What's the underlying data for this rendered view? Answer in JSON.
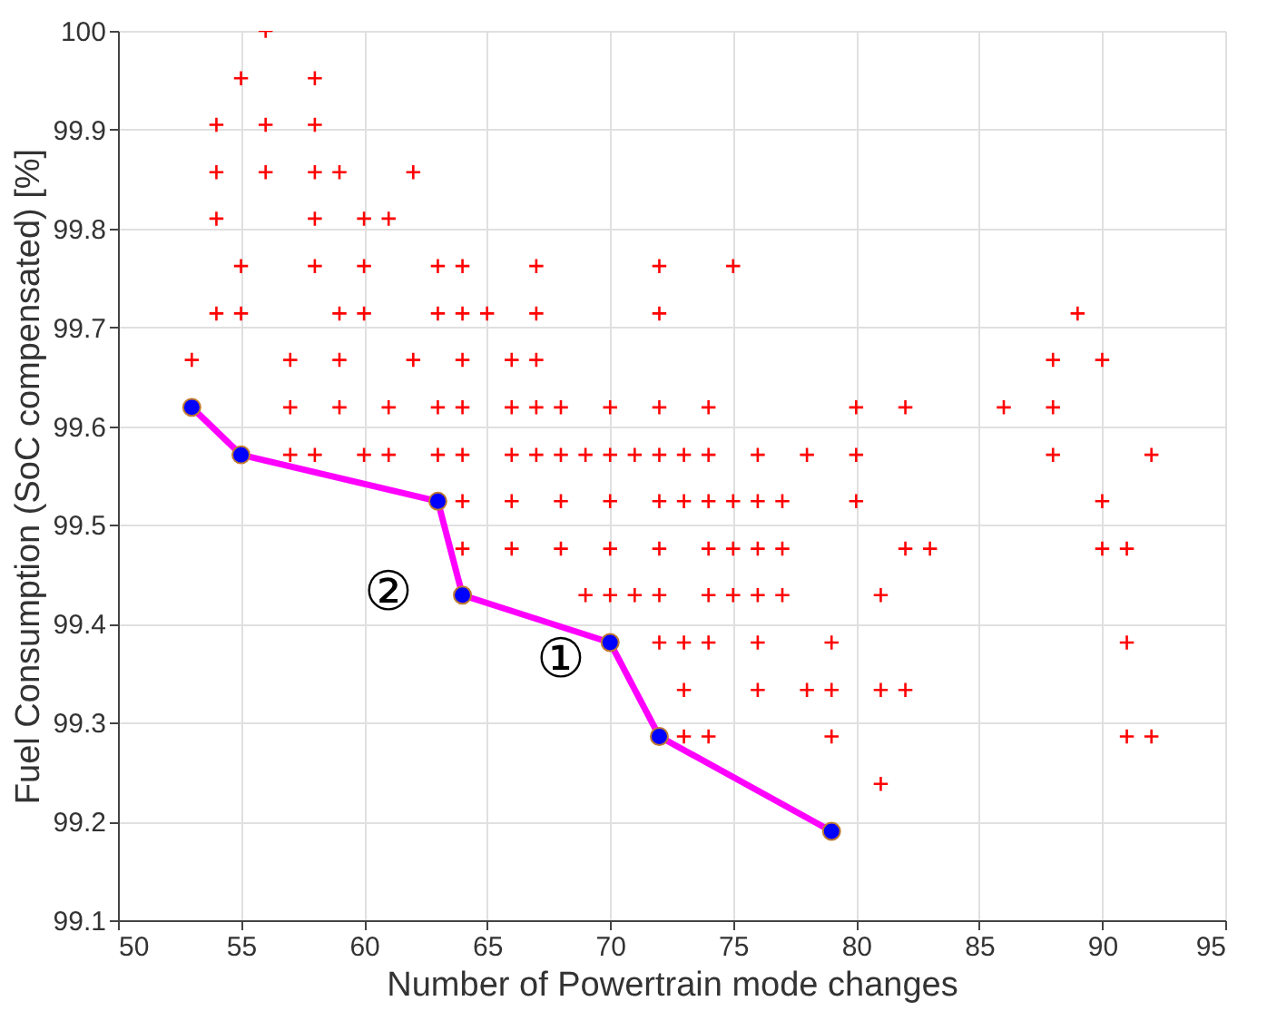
{
  "chart_data": {
    "type": "scatter",
    "xlabel": "Number of Powertrain mode changes",
    "ylabel": "Fuel Consumption (SoC compensated) [%]",
    "xlim": [
      50,
      95
    ],
    "xticks": [
      50,
      55,
      60,
      65,
      70,
      75,
      80,
      85,
      90,
      95
    ],
    "ylim": [
      99.1,
      100
    ],
    "yticks": [
      99.1,
      99.2,
      99.3,
      99.4,
      99.5,
      99.6,
      99.7,
      99.8,
      99.9,
      100
    ],
    "grid": true,
    "annotations": [
      "②",
      "①"
    ],
    "series": [
      {
        "marker": "cross",
        "color": "#ff0000",
        "x": [
          56,
          55,
          58,
          54,
          56,
          58,
          54,
          56,
          58,
          59,
          62,
          54,
          58,
          60,
          61,
          55,
          58,
          60,
          63,
          64,
          67,
          72,
          75,
          54,
          55,
          59,
          60,
          63,
          64,
          65,
          67,
          72,
          89,
          53,
          57,
          59,
          62,
          64,
          66,
          67,
          88,
          90,
          57,
          59,
          61,
          63,
          64,
          66,
          67,
          68,
          70,
          72,
          74,
          80,
          82,
          86,
          88,
          57,
          58,
          60,
          61,
          63,
          64,
          66,
          67,
          68,
          69,
          70,
          71,
          72,
          73,
          74,
          76,
          78,
          80,
          88,
          92,
          64,
          66,
          68,
          70,
          72,
          73,
          74,
          75,
          76,
          77,
          80,
          90,
          64,
          66,
          68,
          70,
          72,
          74,
          75,
          76,
          77,
          82,
          83,
          90,
          91,
          69,
          70,
          71,
          72,
          74,
          75,
          76,
          77,
          81,
          72,
          73,
          74,
          76,
          79,
          91,
          73,
          76,
          78,
          79,
          81,
          82,
          73,
          74,
          79,
          91,
          92,
          81
        ],
        "values": [
          100,
          99.952,
          99.952,
          99.905,
          99.905,
          99.905,
          99.857,
          99.857,
          99.857,
          99.857,
          99.857,
          99.81,
          99.81,
          99.81,
          99.81,
          99.762,
          99.762,
          99.762,
          99.762,
          99.762,
          99.762,
          99.762,
          99.762,
          99.714,
          99.714,
          99.714,
          99.714,
          99.714,
          99.714,
          99.714,
          99.714,
          99.714,
          99.714,
          99.667,
          99.667,
          99.667,
          99.667,
          99.667,
          99.667,
          99.667,
          99.667,
          99.667,
          99.619,
          99.619,
          99.619,
          99.619,
          99.619,
          99.619,
          99.619,
          99.619,
          99.619,
          99.619,
          99.619,
          99.619,
          99.619,
          99.619,
          99.619,
          99.571,
          99.571,
          99.571,
          99.571,
          99.571,
          99.571,
          99.571,
          99.571,
          99.571,
          99.571,
          99.571,
          99.571,
          99.571,
          99.571,
          99.571,
          99.571,
          99.571,
          99.571,
          99.571,
          99.571,
          99.524,
          99.524,
          99.524,
          99.524,
          99.524,
          99.524,
          99.524,
          99.524,
          99.524,
          99.524,
          99.524,
          99.524,
          99.476,
          99.476,
          99.476,
          99.476,
          99.476,
          99.476,
          99.476,
          99.476,
          99.476,
          99.476,
          99.476,
          99.476,
          99.476,
          99.429,
          99.429,
          99.429,
          99.429,
          99.429,
          99.429,
          99.429,
          99.429,
          99.429,
          99.381,
          99.381,
          99.381,
          99.381,
          99.381,
          99.381,
          99.333,
          99.333,
          99.333,
          99.333,
          99.333,
          99.333,
          99.286,
          99.286,
          99.286,
          99.286,
          99.286,
          99.238
        ]
      },
      {
        "type": "line",
        "marker": "circle",
        "color": "#ff00ff",
        "colors": [
          "#0000ff",
          "#0000ff",
          "#0000ff",
          "#0000ff",
          "#0000ff",
          "#0000ff",
          "#0000ff"
        ],
        "x": [
          53,
          55,
          63,
          64,
          70,
          72,
          79
        ],
        "values": [
          99.619,
          99.571,
          99.524,
          99.429,
          99.381,
          99.286,
          99.19
        ]
      }
    ]
  }
}
